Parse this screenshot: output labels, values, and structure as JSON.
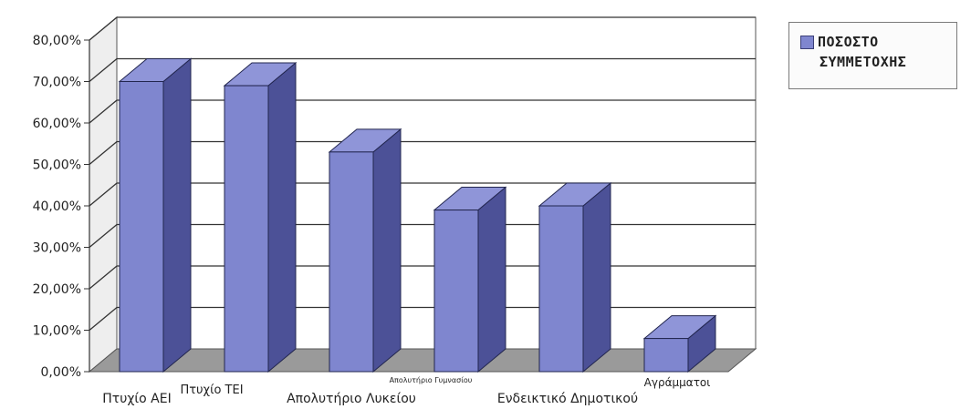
{
  "chart_data": {
    "type": "bar",
    "categories": [
      "Πτυχίο ΑΕΙ",
      "Πτυχίο ΤΕΙ",
      "Απολυτήριο Λυκείου",
      "Απολυτήριο Γυμνασίου",
      "Ενδεικτικό Δημοτικού",
      "Αγράμματοι"
    ],
    "values": [
      0.7,
      0.69,
      0.53,
      0.39,
      0.4,
      0.08
    ],
    "yticks": [
      "0,00%",
      "10,00%",
      "20,00%",
      "30,00%",
      "40,00%",
      "50,00%",
      "60,00%",
      "70,00%",
      "80,00%"
    ],
    "ylim": [
      0,
      0.8
    ],
    "grid": true,
    "three_d": true,
    "legend_position": "top-right",
    "series": [
      {
        "name": "ΠΟΣΟΣΤΟ ΣΥΜΜΕΤΟΧΗΣ",
        "color": "#7f86cf"
      }
    ]
  },
  "legend": {
    "line1": "ΠΟΣΟΣΤΟ",
    "line2": "ΣΥΜΜΕΤΟΧΗΣ"
  }
}
